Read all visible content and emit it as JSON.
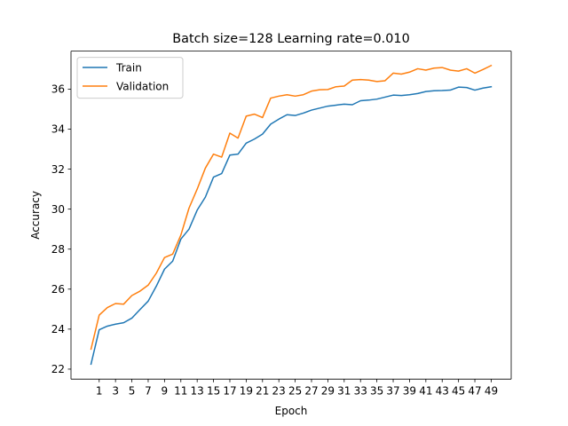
{
  "chart_data": {
    "type": "line",
    "title": "Batch size=128 Learning rate=0.010",
    "xlabel": "Epoch",
    "ylabel": "Accuracy",
    "xlim": [
      -2.45,
      51.45
    ],
    "ylim": [
      21.5,
      37.9
    ],
    "xticks": [
      1,
      3,
      5,
      7,
      9,
      11,
      13,
      15,
      17,
      19,
      21,
      23,
      25,
      27,
      29,
      31,
      33,
      35,
      37,
      39,
      41,
      43,
      45,
      47,
      49
    ],
    "yticks": [
      22,
      24,
      26,
      28,
      30,
      32,
      34,
      36
    ],
    "legend_position": "upper-left",
    "grid": false,
    "x": [
      0,
      1,
      2,
      3,
      4,
      5,
      6,
      7,
      8,
      9,
      10,
      11,
      12,
      13,
      14,
      15,
      16,
      17,
      18,
      19,
      20,
      21,
      22,
      23,
      24,
      25,
      26,
      27,
      28,
      29,
      30,
      31,
      32,
      33,
      34,
      35,
      36,
      37,
      38,
      39,
      40,
      41,
      42,
      43,
      44,
      45,
      46,
      47,
      48,
      49
    ],
    "series": [
      {
        "name": "Train",
        "color": "#1f77b4",
        "values": [
          22.25,
          23.97,
          24.15,
          24.25,
          24.32,
          24.55,
          24.98,
          25.4,
          26.15,
          27.0,
          27.4,
          28.5,
          29.0,
          29.95,
          30.6,
          31.6,
          31.78,
          32.7,
          32.75,
          33.3,
          33.5,
          33.75,
          34.25,
          34.5,
          34.72,
          34.68,
          34.8,
          34.95,
          35.05,
          35.15,
          35.2,
          35.25,
          35.22,
          35.42,
          35.45,
          35.5,
          35.6,
          35.7,
          35.68,
          35.72,
          35.78,
          35.88,
          35.92,
          35.93,
          35.95,
          36.1,
          36.08,
          35.95,
          36.05,
          36.12
        ]
      },
      {
        "name": "Validation",
        "color": "#ff7f0e",
        "values": [
          23.0,
          24.7,
          25.08,
          25.28,
          25.25,
          25.68,
          25.9,
          26.2,
          26.8,
          27.58,
          27.75,
          28.7,
          30.05,
          31.0,
          32.05,
          32.75,
          32.6,
          33.8,
          33.55,
          34.65,
          34.75,
          34.58,
          35.55,
          35.65,
          35.72,
          35.65,
          35.72,
          35.9,
          35.97,
          35.98,
          36.12,
          36.15,
          36.45,
          36.48,
          36.45,
          36.38,
          36.42,
          36.8,
          36.75,
          36.85,
          37.02,
          36.95,
          37.05,
          37.08,
          36.95,
          36.9,
          37.02,
          36.8,
          36.98,
          37.18
        ]
      }
    ]
  }
}
